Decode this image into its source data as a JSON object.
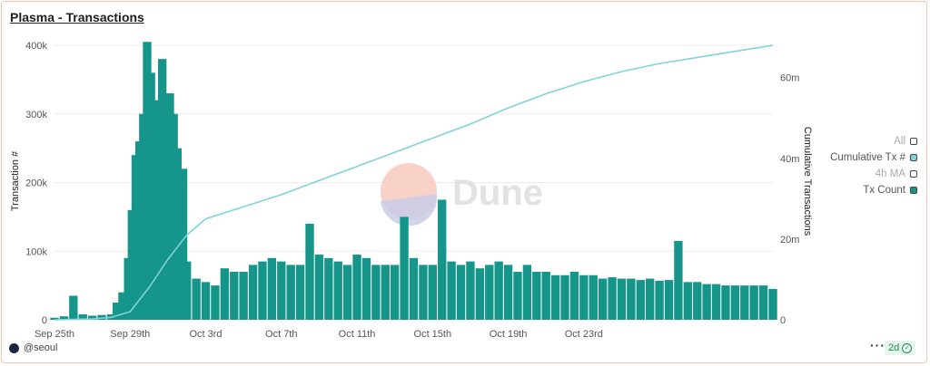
{
  "title": "Plasma - Transactions",
  "footer": {
    "author": "@seoul",
    "refresh_badge": "2d"
  },
  "watermark": "Dune",
  "legend": [
    {
      "label": "All",
      "color": "#ffffff",
      "muted": true
    },
    {
      "label": "Cumulative Tx #",
      "color": "#7fd3e0",
      "muted": false
    },
    {
      "label": "4h MA",
      "color": "#ffffff",
      "muted": true
    },
    {
      "label": "Tx Count",
      "color": "#16968a",
      "muted": false
    }
  ],
  "chart_data": {
    "type": "bar",
    "title": "Plasma - Transactions",
    "xlabel": "",
    "ylabel": "Transaction #",
    "y2label": "Cumulative Transactions",
    "xlim": [
      "Sep 25",
      "Nov 2"
    ],
    "ylim": [
      0,
      400000
    ],
    "y2lim": [
      0,
      68000000
    ],
    "x_ticks": [
      "Sep 25th",
      "Sep 29th",
      "Oct 3rd",
      "Oct 7th",
      "Oct 11th",
      "Oct 15th",
      "Oct 19th",
      "Oct 23rd"
    ],
    "y_ticks": [
      "0",
      "100k",
      "200k",
      "300k",
      "400k"
    ],
    "y2_ticks": [
      "0",
      "20m",
      "40m",
      "60m"
    ],
    "grid": true,
    "legend_position": "right",
    "series": [
      {
        "name": "Tx Count",
        "kind": "bar",
        "color": "#16968a",
        "x_day_offsets": [
          0,
          0.5,
          1,
          1.5,
          2,
          2.5,
          3,
          3.3,
          3.6,
          3.9,
          4.1,
          4.3,
          4.5,
          4.7,
          4.9,
          5.1,
          5.3,
          5.5,
          5.7,
          5.9,
          6.1,
          6.3,
          6.5,
          6.8,
          7,
          7.5,
          8,
          8.5,
          9,
          9.5,
          10,
          10.5,
          11,
          11.5,
          12,
          12.5,
          13,
          13.5,
          14,
          14.5,
          15,
          15.5,
          16,
          16.5,
          17,
          17.5,
          18,
          18.5,
          19,
          19.5,
          20,
          20.5,
          21,
          21.5,
          22,
          22.5,
          23,
          23.5,
          24,
          24.5,
          25,
          25.5,
          26,
          26.5,
          27,
          27.5,
          28,
          28.5,
          29,
          29.5,
          30,
          30.5,
          31,
          31.5,
          32,
          32.5,
          33,
          33.5,
          34,
          34.5,
          35,
          35.5,
          36,
          36.5,
          37,
          37.5,
          38
        ],
        "values": [
          3000,
          5000,
          35000,
          8000,
          6000,
          7000,
          8000,
          25000,
          40000,
          90000,
          160000,
          240000,
          260000,
          300000,
          405000,
          360000,
          270000,
          320000,
          380000,
          260000,
          330000,
          300000,
          250000,
          220000,
          85000,
          60000,
          55000,
          50000,
          75000,
          70000,
          70000,
          80000,
          85000,
          90000,
          85000,
          80000,
          80000,
          140000,
          95000,
          90000,
          85000,
          80000,
          95000,
          90000,
          80000,
          80000,
          80000,
          150000,
          90000,
          80000,
          80000,
          175000,
          85000,
          80000,
          85000,
          75000,
          80000,
          85000,
          80000,
          70000,
          80000,
          70000,
          70000,
          65000,
          65000,
          70000,
          65000,
          65000,
          60000,
          62000,
          60000,
          60000,
          58000,
          60000,
          57000,
          58000,
          115000,
          55000,
          55000,
          52000,
          52000,
          50000,
          50000,
          50000,
          50000,
          50000,
          45000
        ]
      },
      {
        "name": "Cumulative Tx #",
        "kind": "line",
        "axis": "right",
        "color": "#7fd3e0",
        "x_day_offsets": [
          0,
          2,
          3,
          4,
          5,
          6,
          7,
          8,
          9,
          10,
          12,
          14,
          16,
          18,
          20,
          22,
          24,
          26,
          28,
          30,
          32,
          34,
          36,
          38
        ],
        "values": [
          0,
          200000,
          600000,
          2000000,
          8000000,
          15000000,
          21000000,
          25000000,
          26500000,
          28000000,
          31000000,
          34500000,
          38000000,
          41500000,
          45000000,
          48500000,
          52500000,
          56000000,
          59000000,
          61500000,
          63500000,
          65000000,
          66500000,
          68000000
        ]
      }
    ]
  }
}
